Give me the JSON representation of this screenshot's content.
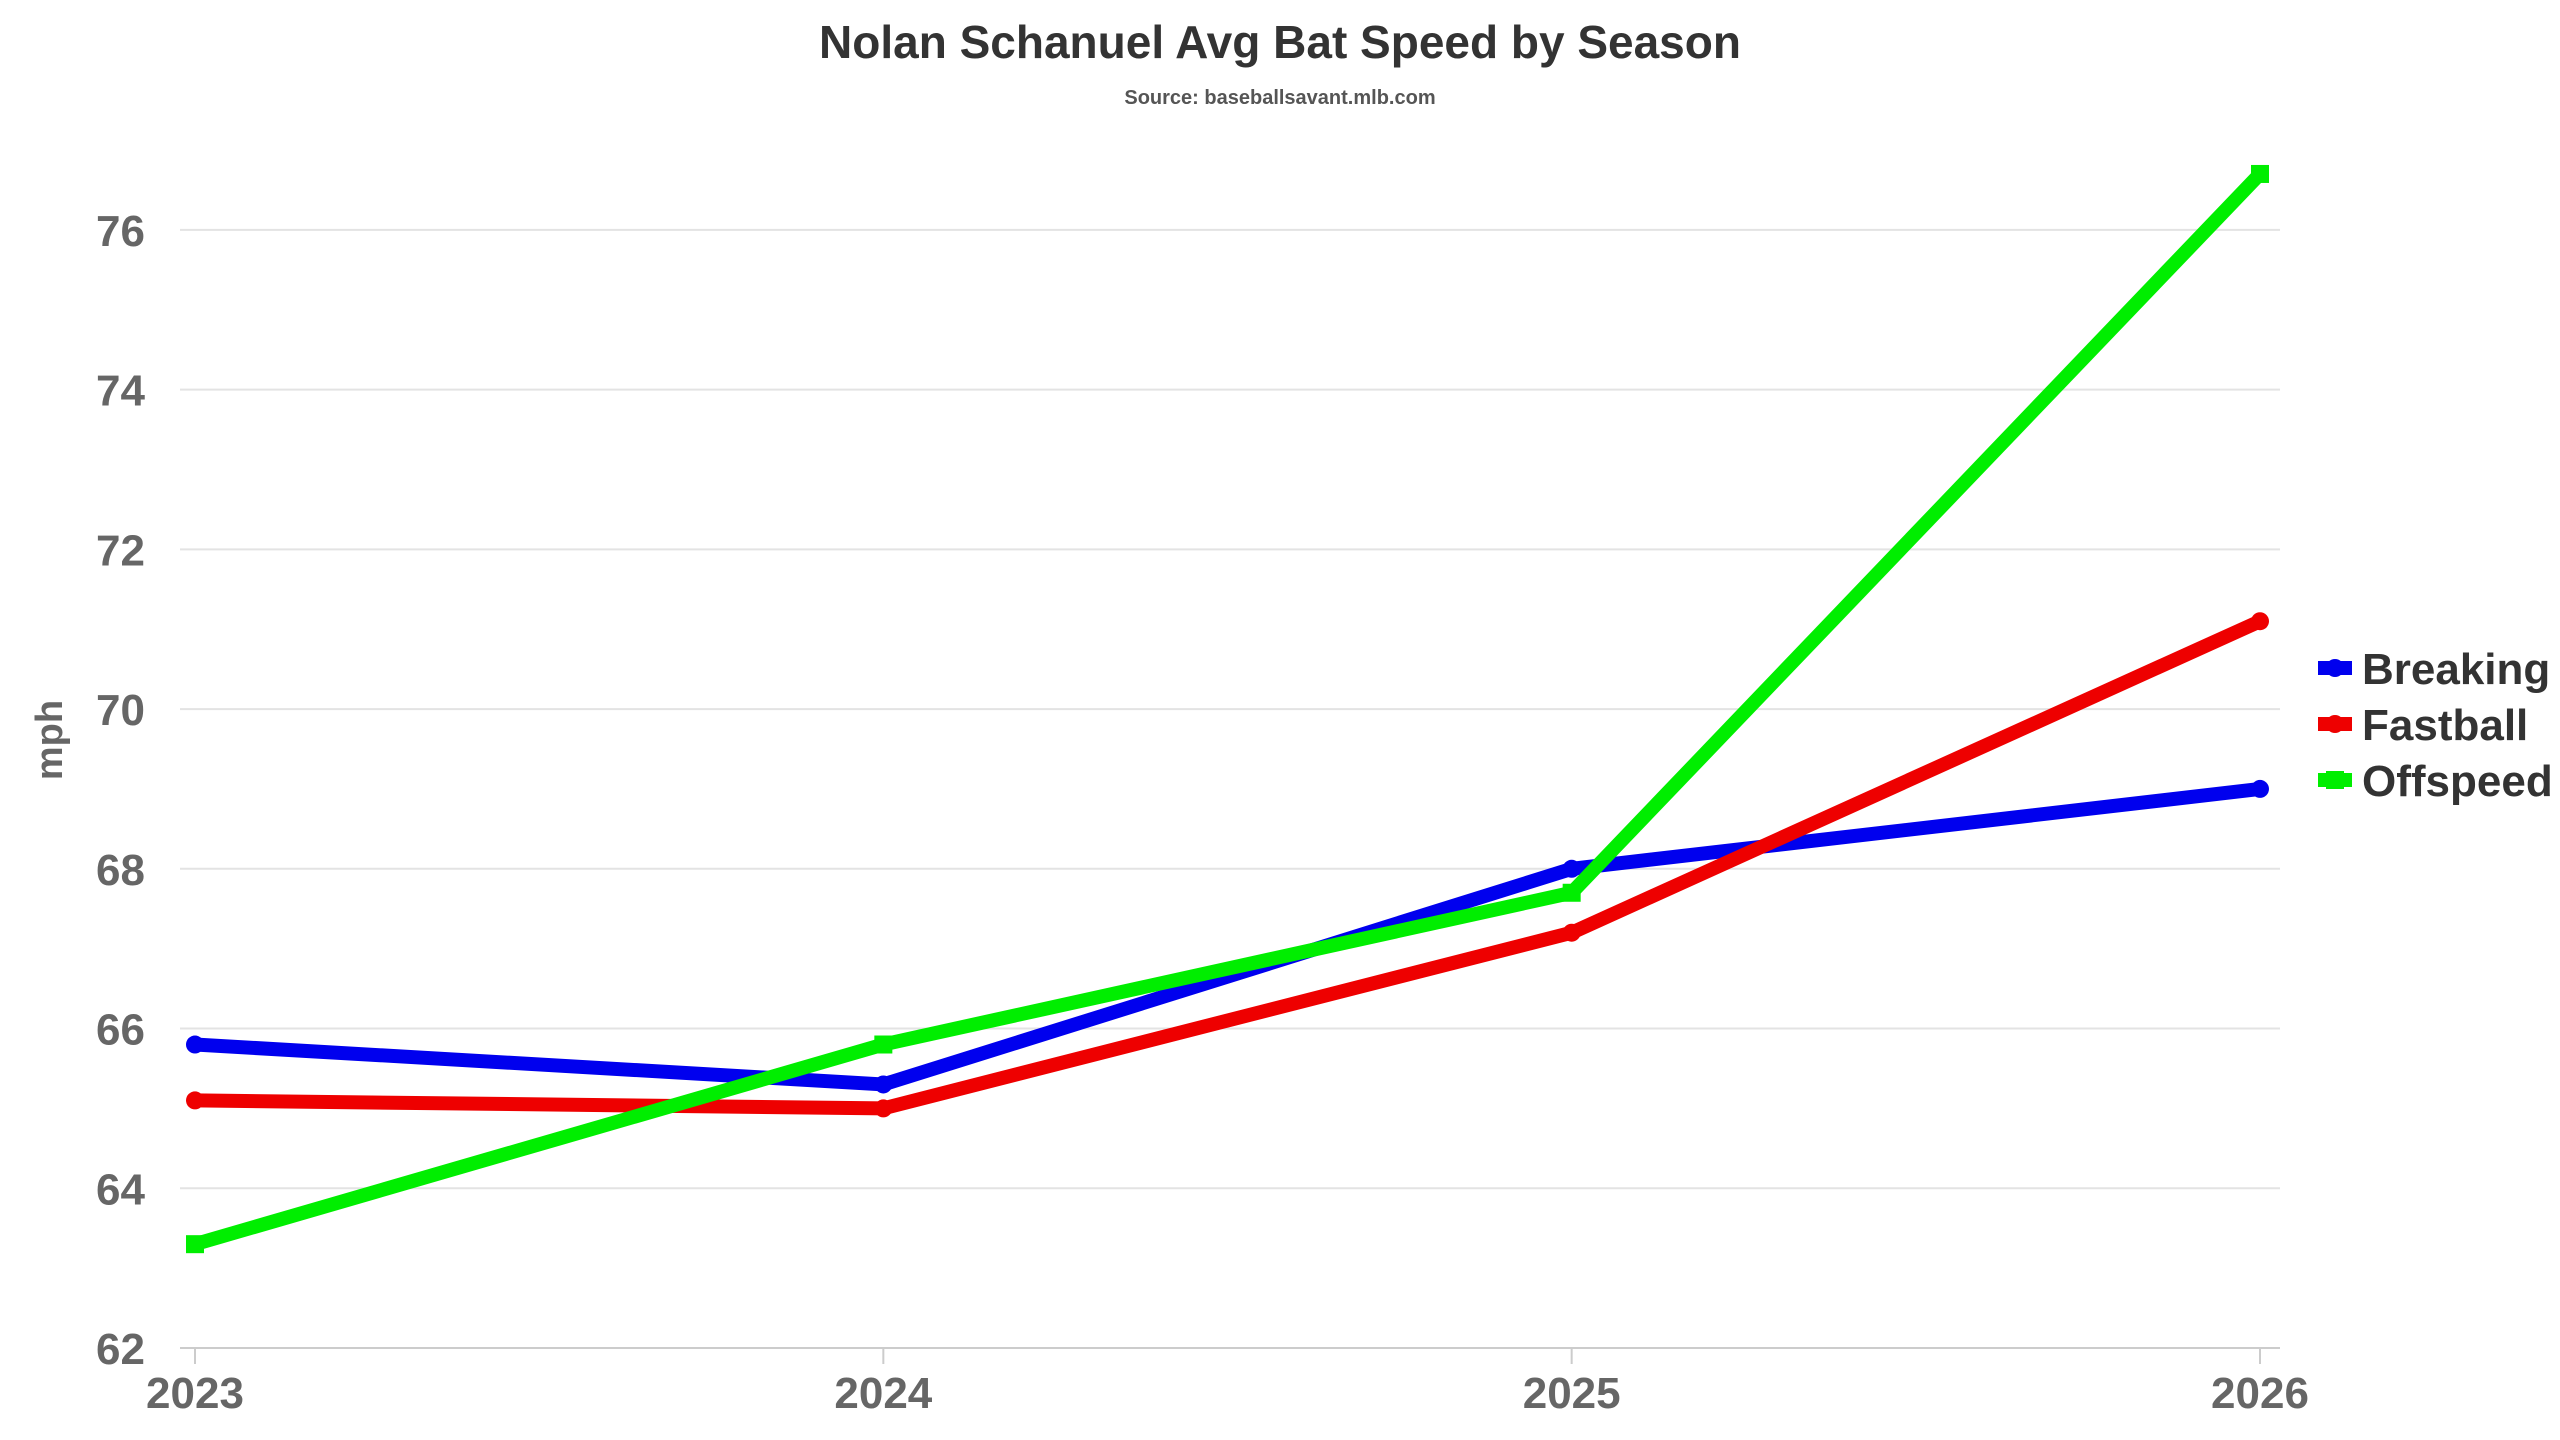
{
  "chart_data": {
    "type": "line",
    "title": "Nolan Schanuel Avg Bat Speed by Season",
    "subtitle": "Source: baseballsavant.mlb.com",
    "xlabel": "",
    "ylabel": "mph",
    "categories": [
      "2023",
      "2024",
      "2025",
      "2026"
    ],
    "ylim": [
      62,
      77
    ],
    "yticks": [
      62,
      64,
      66,
      68,
      70,
      72,
      74,
      76
    ],
    "grid": true,
    "legend_position": "right",
    "series": [
      {
        "name": "Breaking",
        "color": "#0000ee",
        "marker": "circle",
        "values": [
          65.8,
          65.3,
          68.0,
          69.0
        ]
      },
      {
        "name": "Fastball",
        "color": "#ee0000",
        "marker": "circle",
        "values": [
          65.1,
          65.0,
          67.2,
          71.1
        ]
      },
      {
        "name": "Offspeed",
        "color": "#00ee00",
        "marker": "square",
        "values": [
          63.3,
          65.8,
          67.7,
          76.7
        ]
      }
    ]
  }
}
